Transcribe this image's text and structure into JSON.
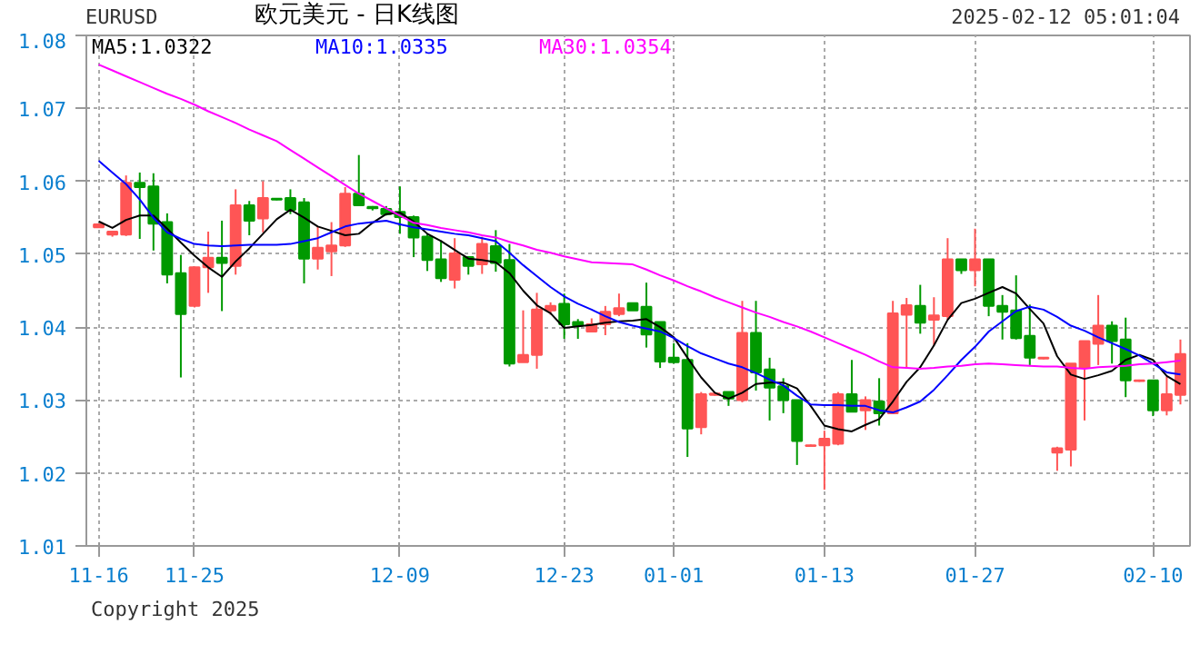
{
  "chart_data": {
    "type": "candlestick",
    "title": "欧元美元 - 日K线图",
    "annotations": [
      "EURUSD",
      "2025-02-12 05:01:04",
      "Copyright 2025"
    ],
    "categories": [
      "11-16",
      null,
      null,
      null,
      null,
      null,
      null,
      "11-25",
      null,
      null,
      null,
      null,
      null,
      null,
      null,
      null,
      null,
      null,
      null,
      null,
      null,
      null,
      "12-09",
      null,
      null,
      null,
      null,
      null,
      null,
      null,
      null,
      null,
      null,
      null,
      "12-23",
      null,
      null,
      null,
      null,
      null,
      null,
      null,
      "01-01",
      null,
      null,
      null,
      null,
      null,
      null,
      null,
      null,
      null,
      null,
      "01-13",
      null,
      null,
      null,
      null,
      null,
      null,
      null,
      null,
      null,
      null,
      "01-27",
      null,
      null,
      null,
      null,
      null,
      null,
      null,
      null,
      null,
      null,
      null,
      null,
      "02-10",
      null,
      null
    ],
    "ohlc": [
      [
        1.0537,
        1.0542,
        1.0536,
        1.0541
      ],
      [
        1.0527,
        1.0532,
        1.0524,
        1.0531
      ],
      [
        1.0527,
        1.0608,
        1.0525,
        1.0598
      ],
      [
        1.0598,
        1.0612,
        1.0521,
        1.0592
      ],
      [
        1.0593,
        1.0611,
        1.0505,
        1.0542
      ],
      [
        1.0544,
        1.0556,
        1.046,
        1.0472
      ],
      [
        1.0474,
        1.0499,
        1.0331,
        1.0418
      ],
      [
        1.0429,
        1.0483,
        1.0427,
        1.0482
      ],
      [
        1.0482,
        1.0531,
        1.0447,
        1.0495
      ],
      [
        1.0495,
        1.0546,
        1.0422,
        1.0488
      ],
      [
        1.0484,
        1.0589,
        1.0472,
        1.0567
      ],
      [
        1.0567,
        1.0573,
        1.0526,
        1.0546
      ],
      [
        1.0549,
        1.06,
        1.053,
        1.0577
      ],
      [
        1.0576,
        1.0577,
        1.0574,
        1.0575
      ],
      [
        1.0577,
        1.0589,
        1.0555,
        1.0561
      ],
      [
        1.0571,
        1.0577,
        1.046,
        1.0494
      ],
      [
        1.0494,
        1.0538,
        1.0479,
        1.0509
      ],
      [
        1.0504,
        1.0544,
        1.047,
        1.0512
      ],
      [
        1.0512,
        1.0592,
        1.051,
        1.0583
      ],
      [
        1.0583,
        1.0636,
        1.0567,
        1.0567
      ],
      [
        1.0565,
        1.0566,
        1.056,
        1.0563
      ],
      [
        1.0562,
        1.0566,
        1.0553,
        1.0555
      ],
      [
        1.0558,
        1.0593,
        1.0528,
        1.0551
      ],
      [
        1.0551,
        1.0553,
        1.0496,
        1.0523
      ],
      [
        1.0524,
        1.0528,
        1.0477,
        1.0492
      ],
      [
        1.0493,
        1.0519,
        1.0462,
        1.0467
      ],
      [
        1.0465,
        1.0522,
        1.0453,
        1.0501
      ],
      [
        1.0496,
        1.0496,
        1.0472,
        1.0484
      ],
      [
        1.0486,
        1.0524,
        1.0473,
        1.0514
      ],
      [
        1.0511,
        1.0533,
        1.0476,
        1.0488
      ],
      [
        1.0492,
        1.0514,
        1.0346,
        1.035
      ],
      [
        1.0352,
        1.0423,
        1.0352,
        1.0362
      ],
      [
        1.0362,
        1.0447,
        1.0343,
        1.0424
      ],
      [
        1.0423,
        1.0434,
        1.0417,
        1.0429
      ],
      [
        1.0432,
        1.0446,
        1.0384,
        1.0404
      ],
      [
        1.0407,
        1.0411,
        1.0384,
        1.0402
      ],
      [
        1.0394,
        1.0412,
        1.0394,
        1.0404
      ],
      [
        1.0404,
        1.0429,
        1.0389,
        1.0421
      ],
      [
        1.0418,
        1.0446,
        1.0415,
        1.0426
      ],
      [
        1.0433,
        1.0433,
        1.0423,
        1.0423
      ],
      [
        1.0428,
        1.0461,
        1.0372,
        1.039
      ],
      [
        1.0407,
        1.0407,
        1.0344,
        1.0353
      ],
      [
        1.0358,
        1.0378,
        1.035,
        1.0352
      ],
      [
        1.0355,
        1.0378,
        1.0222,
        1.0261
      ],
      [
        1.0263,
        1.0311,
        1.0253,
        1.0308
      ],
      [
        1.0307,
        1.0309,
        1.0306,
        1.0309
      ],
      [
        1.0311,
        1.0311,
        1.0292,
        1.0302
      ],
      [
        1.03,
        1.0436,
        1.0297,
        1.0392
      ],
      [
        1.0392,
        1.0436,
        1.0313,
        1.0338
      ],
      [
        1.0342,
        1.0358,
        1.0272,
        1.0317
      ],
      [
        1.0319,
        1.033,
        1.0282,
        1.03
      ],
      [
        1.03,
        1.03,
        1.0211,
        1.0244
      ],
      [
        1.0237,
        1.0239,
        1.0236,
        1.0238
      ],
      [
        1.0238,
        1.0258,
        1.0177,
        1.0247
      ],
      [
        1.024,
        1.0311,
        1.0238,
        1.0308
      ],
      [
        1.0308,
        1.0355,
        1.0284,
        1.0284
      ],
      [
        1.0286,
        1.0305,
        1.0259,
        1.03
      ],
      [
        1.0298,
        1.033,
        1.0265,
        1.0282
      ],
      [
        1.0282,
        1.0436,
        1.0282,
        1.0419
      ],
      [
        1.0417,
        1.044,
        1.0344,
        1.043
      ],
      [
        1.0429,
        1.0458,
        1.0391,
        1.0406
      ],
      [
        1.041,
        1.0441,
        1.0375,
        1.0416
      ],
      [
        1.0415,
        1.0522,
        1.041,
        1.0493
      ],
      [
        1.0493,
        1.0493,
        1.0473,
        1.0478
      ],
      [
        1.0478,
        1.0535,
        1.0456,
        1.0493
      ],
      [
        1.0493,
        1.0493,
        1.0415,
        1.0429
      ],
      [
        1.0429,
        1.0444,
        1.0383,
        1.0421
      ],
      [
        1.0423,
        1.0471,
        1.0383,
        1.0385
      ],
      [
        1.0388,
        1.0431,
        1.0348,
        1.0358
      ],
      [
        1.0357,
        1.0359,
        1.0356,
        1.0358
      ],
      [
        1.0228,
        1.0236,
        1.0203,
        1.0234
      ],
      [
        1.0232,
        1.035,
        1.0209,
        1.035
      ],
      [
        1.0344,
        1.0381,
        1.0272,
        1.0381
      ],
      [
        1.0377,
        1.0444,
        1.0348,
        1.0402
      ],
      [
        1.0402,
        1.0408,
        1.035,
        1.0381
      ],
      [
        1.0383,
        1.0413,
        1.0304,
        1.0327
      ],
      [
        1.0326,
        1.0328,
        1.0325,
        1.0327
      ],
      [
        1.0327,
        1.0327,
        1.0278,
        1.0286
      ],
      [
        1.0286,
        1.0332,
        1.0279,
        1.0308
      ],
      [
        1.0307,
        1.0383,
        1.0294,
        1.0363
      ]
    ],
    "colors": [
      "#ff5555",
      "#ff5555",
      "#ff5555",
      "#009900",
      "#009900",
      "#009900",
      "#009900",
      "#ff5555",
      "#ff5555",
      "#009900",
      "#ff5555",
      "#009900",
      "#ff5555",
      "#009900",
      "#009900",
      "#009900",
      "#ff5555",
      "#ff5555",
      "#ff5555",
      "#009900",
      "#009900",
      "#009900",
      "#009900",
      "#009900",
      "#009900",
      "#009900",
      "#ff5555",
      "#009900",
      "#ff5555",
      "#009900",
      "#009900",
      "#ff5555",
      "#ff5555",
      "#ff5555",
      "#009900",
      "#009900",
      "#ff5555",
      "#ff5555",
      "#ff5555",
      "#009900",
      "#009900",
      "#009900",
      "#009900",
      "#009900",
      "#ff5555",
      "#ff5555",
      "#009900",
      "#ff5555",
      "#009900",
      "#009900",
      "#009900",
      "#009900",
      "#ff5555",
      "#ff5555",
      "#ff5555",
      "#009900",
      "#ff5555",
      "#009900",
      "#ff5555",
      "#ff5555",
      "#009900",
      "#ff5555",
      "#ff5555",
      "#009900",
      "#ff5555",
      "#009900",
      "#009900",
      "#009900",
      "#009900",
      "#ff5555",
      "#ff5555",
      "#ff5555",
      "#ff5555",
      "#ff5555",
      "#009900",
      "#009900",
      "#ff5555",
      "#009900",
      "#ff5555",
      "#ff5555"
    ],
    "series": [
      {
        "name": "MA5:1.0322",
        "type": "line",
        "color": "#000000",
        "values": [
          1.0545,
          1.0536,
          1.0547,
          1.0553,
          1.0553,
          1.0535,
          1.0516,
          1.0498,
          1.0482,
          1.0469,
          1.049,
          1.0508,
          1.0528,
          1.0548,
          1.0561,
          1.055,
          1.0538,
          1.0532,
          1.0526,
          1.0528,
          1.0543,
          1.0555,
          1.0557,
          1.0545,
          1.0528,
          1.0518,
          1.0506,
          1.0494,
          1.0492,
          1.0489,
          1.0474,
          1.045,
          1.043,
          1.0419,
          1.0399,
          1.0401,
          1.0403,
          1.0406,
          1.0408,
          1.0409,
          1.0411,
          1.04,
          1.0386,
          1.0358,
          1.0331,
          1.031,
          1.0302,
          1.031,
          1.0322,
          1.0324,
          1.0324,
          1.0316,
          1.0292,
          1.0265,
          1.026,
          1.0257,
          1.0266,
          1.0274,
          1.0298,
          1.0325,
          1.0345,
          1.0375,
          1.041,
          1.0433,
          1.0439,
          1.0447,
          1.0455,
          1.0446,
          1.0425,
          1.0405,
          1.036,
          1.0335,
          1.0329,
          1.0334,
          1.034,
          1.0355,
          1.0362,
          1.0355,
          1.0333,
          1.0322
        ]
      },
      {
        "name": "MA10:1.0335",
        "type": "line",
        "color": "#0000ff",
        "values": [
          1.0628,
          1.0612,
          1.0596,
          1.0575,
          1.055,
          1.053,
          1.0521,
          1.0514,
          1.0512,
          1.0511,
          1.0512,
          1.0513,
          1.0513,
          1.0513,
          1.0514,
          1.0518,
          1.0522,
          1.053,
          1.0538,
          1.0542,
          1.0544,
          1.0546,
          1.0541,
          1.0537,
          1.0534,
          1.0531,
          1.0528,
          1.0526,
          1.0522,
          1.0518,
          1.0502,
          1.0485,
          1.047,
          1.0455,
          1.0442,
          1.0432,
          1.0424,
          1.0415,
          1.0407,
          1.0402,
          1.0398,
          1.0394,
          1.0385,
          1.0374,
          1.0364,
          1.0357,
          1.035,
          1.0345,
          1.0337,
          1.0328,
          1.032,
          1.0306,
          1.0294,
          1.0293,
          1.0293,
          1.0292,
          1.0292,
          1.0286,
          1.0283,
          1.029,
          1.0298,
          1.0314,
          1.0334,
          1.0355,
          1.0373,
          1.0394,
          1.0408,
          1.0422,
          1.0428,
          1.0424,
          1.0414,
          1.0402,
          1.0395,
          1.0386,
          1.0378,
          1.037,
          1.0361,
          1.035,
          1.0338,
          1.0335
        ]
      },
      {
        "name": "MA30:1.0354",
        "type": "line",
        "color": "#ff00ff",
        "values": [
          1.076,
          1.0752,
          1.0744,
          1.0736,
          1.0728,
          1.072,
          1.0713,
          1.0705,
          1.0696,
          1.0688,
          1.068,
          1.0671,
          1.0663,
          1.0655,
          1.0643,
          1.0631,
          1.0619,
          1.0607,
          1.0595,
          1.0583,
          1.0573,
          1.0563,
          1.0553,
          1.0543,
          1.054,
          1.0536,
          1.0533,
          1.053,
          1.0526,
          1.0523,
          1.0517,
          1.0512,
          1.0506,
          1.0502,
          1.0497,
          1.0493,
          1.0489,
          1.0488,
          1.0487,
          1.0486,
          1.0479,
          1.0471,
          1.0464,
          1.0456,
          1.0449,
          1.0441,
          1.0434,
          1.0427,
          1.042,
          1.0414,
          1.0407,
          1.0401,
          1.0394,
          1.0386,
          1.0378,
          1.037,
          1.0362,
          1.0353,
          1.0345,
          1.0344,
          1.0343,
          1.0344,
          1.0346,
          1.0347,
          1.0349,
          1.035,
          1.0349,
          1.0348,
          1.0347,
          1.0346,
          1.0346,
          1.0344,
          1.0343,
          1.0345,
          1.0346,
          1.0347,
          1.0349,
          1.035,
          1.0352,
          1.0354
        ]
      }
    ],
    "ylim": [
      1.01,
      1.08
    ],
    "yticks": [
      1.01,
      1.02,
      1.03,
      1.04,
      1.05,
      1.06,
      1.07,
      1.08
    ],
    "grid": true,
    "marker": "none",
    "line_style": "solid"
  }
}
